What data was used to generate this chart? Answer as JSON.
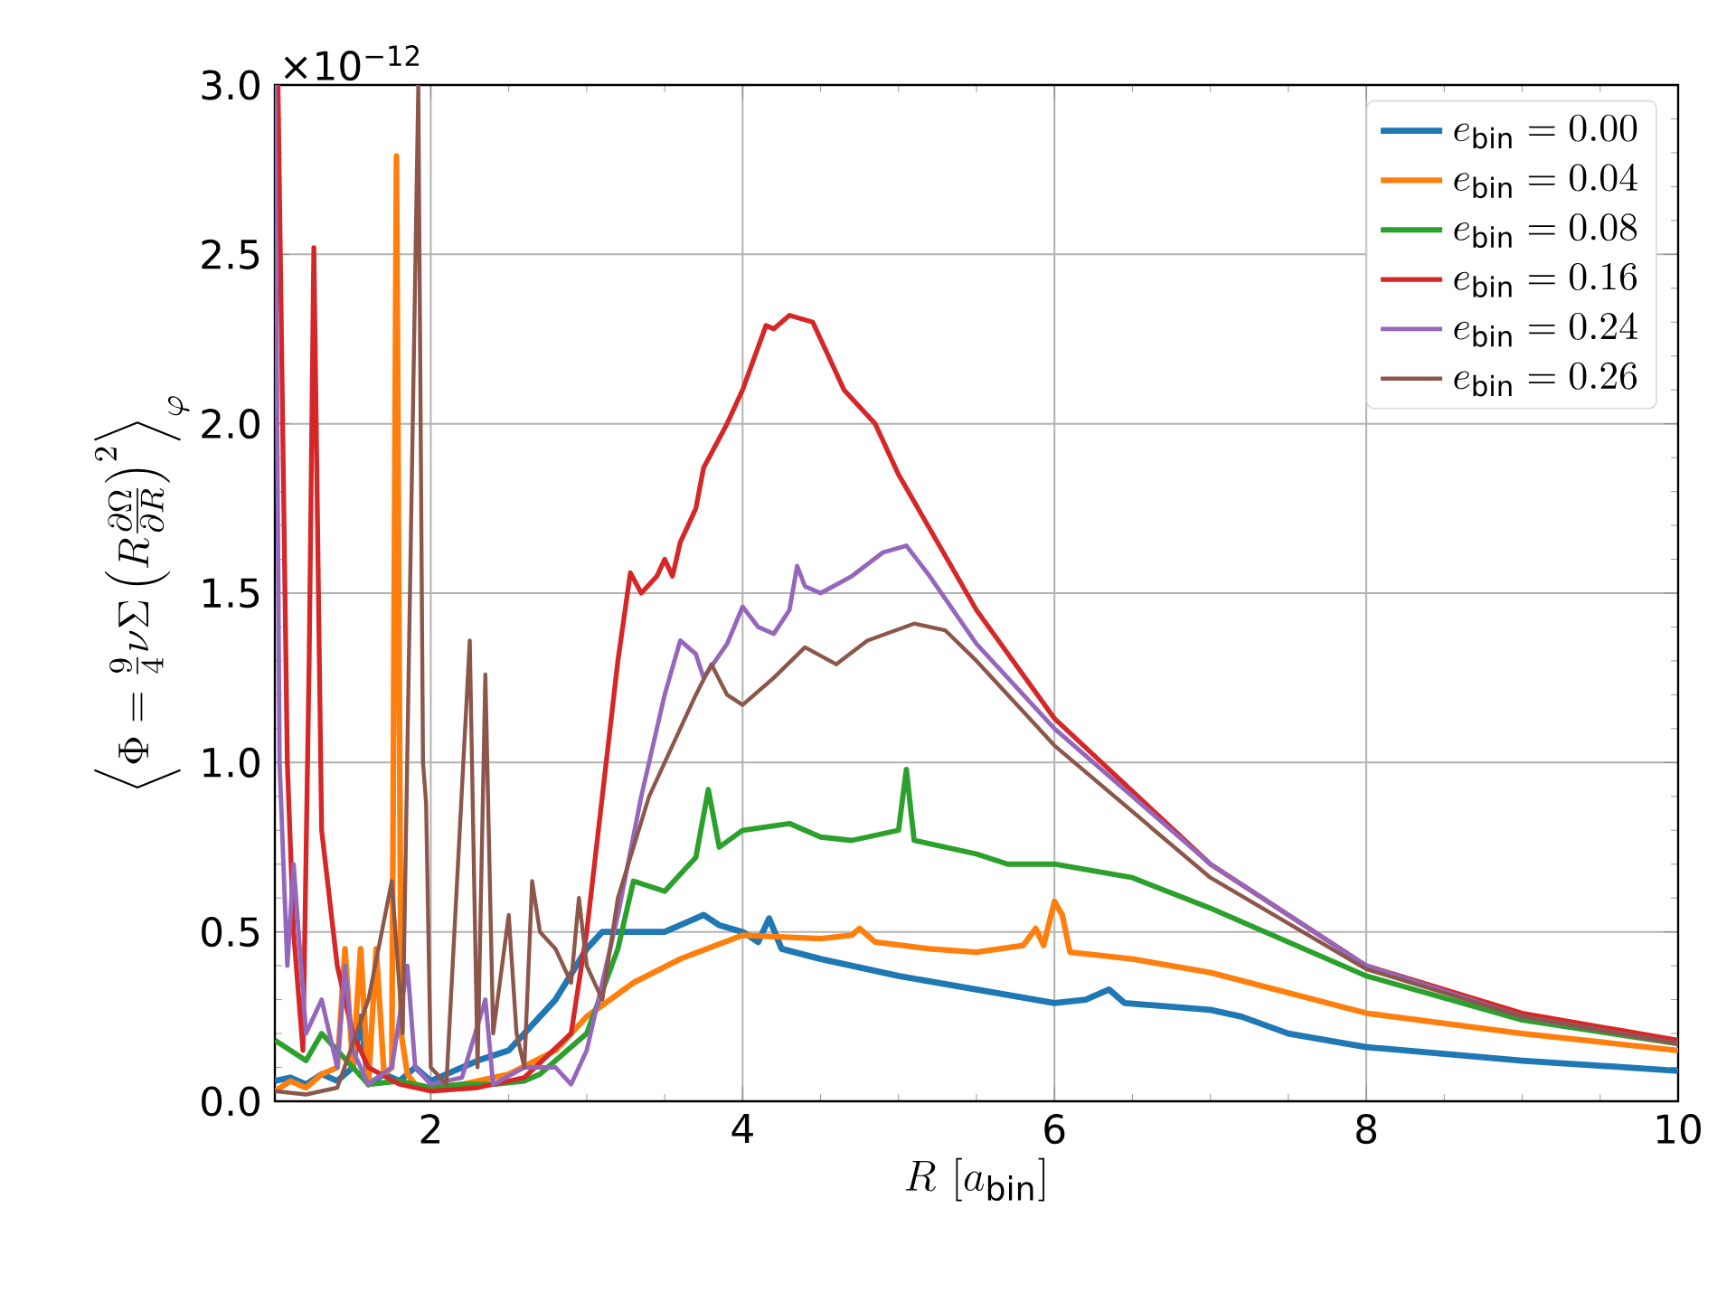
{
  "chart_data": {
    "type": "line",
    "xlabel": "R\\ [a_{\\mathrm{bin}}]",
    "ylabel": "\\left\\langle \\Phi = \\frac{9}{4}\\nu\\Sigma\\left(R\\frac{\\partial\\Omega}{\\partial R}\\right)^{2}\\right\\rangle_{\\varphi}",
    "annotations": [
      "×10$^{−12}$"
    ],
    "xlim": [
      1,
      10
    ],
    "ylim": [
      0,
      3.0
    ],
    "xticks": [
      2,
      4,
      6,
      8,
      10
    ],
    "yticks": [
      {
        "value": 0,
        "label": "0.0"
      },
      0.5,
      {
        "value": 1,
        "label": "1.0"
      },
      1.5,
      {
        "value": 2,
        "label": "2.0"
      },
      2.5,
      {
        "value": 3,
        "label": "3.0"
      }
    ],
    "grid": true,
    "legend": "top right",
    "line_style": "solid",
    "marker": "none",
    "series": [
      {
        "name": "e_{\\mathrm{bin}} = 0.00",
        "color": "#1f77b4",
        "x": [
          1.0,
          1.1,
          1.2,
          1.3,
          1.4,
          1.5,
          1.55,
          1.6,
          1.7,
          1.8,
          1.9,
          2.0,
          2.1,
          2.2,
          2.3,
          2.5,
          2.8,
          3.0,
          3.1,
          3.5,
          3.75,
          3.85,
          4.0,
          4.1,
          4.17,
          4.25,
          4.5,
          4.8,
          5.0,
          5.5,
          6.0,
          6.2,
          6.35,
          6.45,
          7.0,
          7.2,
          7.5,
          8.0,
          9.0,
          10.0
        ],
        "values": [
          0.06,
          0.07,
          0.05,
          0.08,
          0.06,
          0.1,
          0.25,
          0.05,
          0.08,
          0.06,
          0.1,
          0.06,
          0.08,
          0.1,
          0.12,
          0.15,
          0.3,
          0.45,
          0.5,
          0.5,
          0.55,
          0.52,
          0.5,
          0.47,
          0.54,
          0.45,
          0.42,
          0.39,
          0.37,
          0.33,
          0.29,
          0.3,
          0.33,
          0.29,
          0.27,
          0.25,
          0.2,
          0.16,
          0.12,
          0.09
        ]
      },
      {
        "name": "e_{\\mathrm{bin}} = 0.04",
        "color": "#ff7f0e",
        "x": [
          1.0,
          1.1,
          1.2,
          1.3,
          1.4,
          1.45,
          1.5,
          1.55,
          1.6,
          1.65,
          1.7,
          1.75,
          1.78,
          1.81,
          1.85,
          1.9,
          2.0,
          2.2,
          2.5,
          2.8,
          3.0,
          3.3,
          3.6,
          4.0,
          4.5,
          4.7,
          4.75,
          4.85,
          5.2,
          5.5,
          5.8,
          5.88,
          5.93,
          6.0,
          6.05,
          6.1,
          6.5,
          7.0,
          8.0,
          9.0,
          10.0
        ],
        "values": [
          0.03,
          0.06,
          0.04,
          0.08,
          0.1,
          0.45,
          0.1,
          0.45,
          0.05,
          0.45,
          0.08,
          0.1,
          2.79,
          0.2,
          0.08,
          0.05,
          0.04,
          0.05,
          0.08,
          0.15,
          0.25,
          0.35,
          0.42,
          0.49,
          0.48,
          0.49,
          0.51,
          0.47,
          0.45,
          0.44,
          0.46,
          0.51,
          0.46,
          0.59,
          0.55,
          0.44,
          0.42,
          0.38,
          0.26,
          0.2,
          0.15
        ]
      },
      {
        "name": "e_{\\mathrm{bin}} = 0.08",
        "color": "#2ca02c",
        "x": [
          1.0,
          1.1,
          1.2,
          1.3,
          1.4,
          1.5,
          1.6,
          1.8,
          2.0,
          2.2,
          2.4,
          2.6,
          2.7,
          3.0,
          3.2,
          3.3,
          3.5,
          3.7,
          3.78,
          3.85,
          4.0,
          4.3,
          4.5,
          4.7,
          5.0,
          5.05,
          5.1,
          5.5,
          5.7,
          6.0,
          6.5,
          7.0,
          8.0,
          9.0,
          10.0
        ],
        "values": [
          0.18,
          0.15,
          0.12,
          0.2,
          0.15,
          0.1,
          0.05,
          0.06,
          0.04,
          0.05,
          0.05,
          0.06,
          0.08,
          0.2,
          0.45,
          0.65,
          0.62,
          0.72,
          0.92,
          0.75,
          0.8,
          0.82,
          0.78,
          0.77,
          0.8,
          0.98,
          0.77,
          0.73,
          0.7,
          0.7,
          0.66,
          0.57,
          0.37,
          0.24,
          0.17
        ]
      },
      {
        "name": "e_{\\mathrm{bin}} = 0.16",
        "color": "#d62728",
        "x": [
          1.02,
          1.08,
          1.12,
          1.18,
          1.22,
          1.25,
          1.3,
          1.4,
          1.5,
          1.6,
          1.8,
          2.0,
          2.3,
          2.6,
          2.9,
          3.0,
          3.1,
          3.2,
          3.28,
          3.35,
          3.45,
          3.5,
          3.55,
          3.6,
          3.7,
          3.75,
          3.9,
          4.0,
          4.15,
          4.2,
          4.3,
          4.45,
          4.55,
          4.65,
          4.85,
          5.0,
          5.5,
          6.0,
          7.0,
          8.0,
          9.0,
          10.0
        ],
        "values": [
          3.0,
          1.0,
          0.5,
          0.15,
          1.3,
          2.52,
          0.8,
          0.4,
          0.2,
          0.1,
          0.05,
          0.03,
          0.04,
          0.07,
          0.2,
          0.5,
          0.9,
          1.3,
          1.56,
          1.5,
          1.55,
          1.6,
          1.55,
          1.65,
          1.75,
          1.87,
          2.0,
          2.1,
          2.29,
          2.28,
          2.32,
          2.3,
          2.2,
          2.1,
          2.0,
          1.85,
          1.45,
          1.13,
          0.7,
          0.4,
          0.26,
          0.18
        ]
      },
      {
        "name": "e_{\\mathrm{bin}} = 0.24",
        "color": "#9467bd",
        "x": [
          1.0,
          1.03,
          1.08,
          1.12,
          1.2,
          1.3,
          1.4,
          1.45,
          1.5,
          1.6,
          1.75,
          1.85,
          1.9,
          2.0,
          2.2,
          2.35,
          2.4,
          2.6,
          2.8,
          2.9,
          3.0,
          3.2,
          3.35,
          3.5,
          3.6,
          3.7,
          3.75,
          3.9,
          4.0,
          4.1,
          4.2,
          4.3,
          4.35,
          4.4,
          4.5,
          4.7,
          4.9,
          5.05,
          5.2,
          5.5,
          6.0,
          7.0,
          8.0,
          9.0,
          10.0
        ],
        "values": [
          3.0,
          1.0,
          0.4,
          0.7,
          0.2,
          0.3,
          0.1,
          0.4,
          0.15,
          0.05,
          0.1,
          0.4,
          0.1,
          0.05,
          0.07,
          0.3,
          0.05,
          0.1,
          0.1,
          0.05,
          0.15,
          0.55,
          0.9,
          1.2,
          1.36,
          1.32,
          1.25,
          1.35,
          1.46,
          1.4,
          1.38,
          1.45,
          1.58,
          1.52,
          1.5,
          1.55,
          1.62,
          1.64,
          1.55,
          1.35,
          1.1,
          0.7,
          0.4,
          0.25,
          0.17
        ]
      },
      {
        "name": "e_{\\mathrm{bin}} = 0.26",
        "color": "#8c564b",
        "x": [
          1.0,
          1.2,
          1.4,
          1.6,
          1.75,
          1.82,
          1.92,
          1.95,
          1.97,
          2.0,
          2.1,
          2.25,
          2.3,
          2.35,
          2.4,
          2.5,
          2.55,
          2.6,
          2.65,
          2.7,
          2.8,
          2.9,
          2.95,
          3.0,
          3.1,
          3.2,
          3.4,
          3.55,
          3.7,
          3.8,
          3.9,
          4.0,
          4.2,
          4.4,
          4.6,
          4.8,
          5.1,
          5.3,
          5.5,
          6.0,
          7.0,
          8.0,
          9.0,
          10.0
        ],
        "values": [
          0.03,
          0.02,
          0.04,
          0.3,
          0.65,
          0.2,
          3.0,
          1.0,
          0.88,
          0.1,
          0.05,
          1.36,
          0.1,
          1.26,
          0.2,
          0.55,
          0.2,
          0.1,
          0.65,
          0.5,
          0.45,
          0.35,
          0.6,
          0.4,
          0.3,
          0.6,
          0.9,
          1.05,
          1.2,
          1.29,
          1.2,
          1.17,
          1.25,
          1.34,
          1.29,
          1.36,
          1.41,
          1.39,
          1.3,
          1.05,
          0.66,
          0.39,
          0.25,
          0.17
        ]
      }
    ]
  }
}
